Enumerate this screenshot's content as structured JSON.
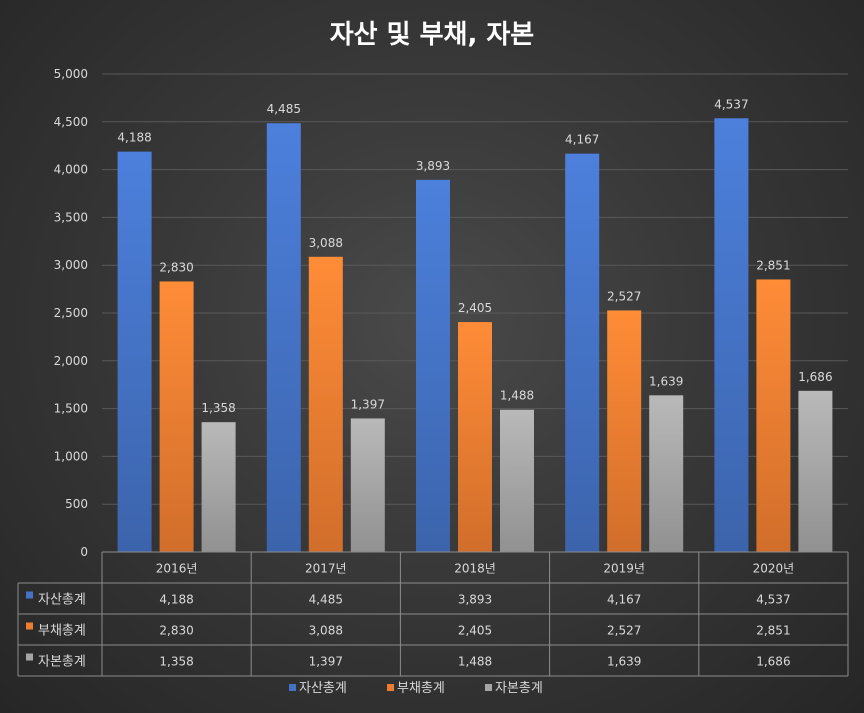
{
  "chart_data": {
    "type": "bar",
    "title": "자산 및 부채, 자본",
    "categories": [
      "2016년",
      "2017년",
      "2018년",
      "2019년",
      "2020년"
    ],
    "series": [
      {
        "name": "자산총계",
        "color": "#4472c4",
        "values": [
          4188,
          4485,
          3893,
          4167,
          4537
        ],
        "labels": [
          "4,188",
          "4,485",
          "3,893",
          "4,167",
          "4,537"
        ]
      },
      {
        "name": "부채총계",
        "color": "#ed7d31",
        "values": [
          2830,
          3088,
          2405,
          2527,
          2851
        ],
        "labels": [
          "2,830",
          "3,088",
          "2,405",
          "2,527",
          "2,851"
        ]
      },
      {
        "name": "자본총계",
        "color": "#a5a5a5",
        "values": [
          1358,
          1397,
          1488,
          1639,
          1686
        ],
        "labels": [
          "1,358",
          "1,397",
          "1,488",
          "1,639",
          "1,686"
        ]
      }
    ],
    "ylim": [
      0,
      5000
    ],
    "yticks": [
      0,
      500,
      1000,
      1500,
      2000,
      2500,
      3000,
      3500,
      4000,
      4500,
      5000
    ],
    "ytick_labels": [
      "0",
      "500",
      "1,000",
      "1,500",
      "2,000",
      "2,500",
      "3,000",
      "3,500",
      "4,000",
      "4,500",
      "5,000"
    ],
    "xlabel": "",
    "ylabel": "",
    "grid": true,
    "data_table": true,
    "legend": "bottom"
  }
}
